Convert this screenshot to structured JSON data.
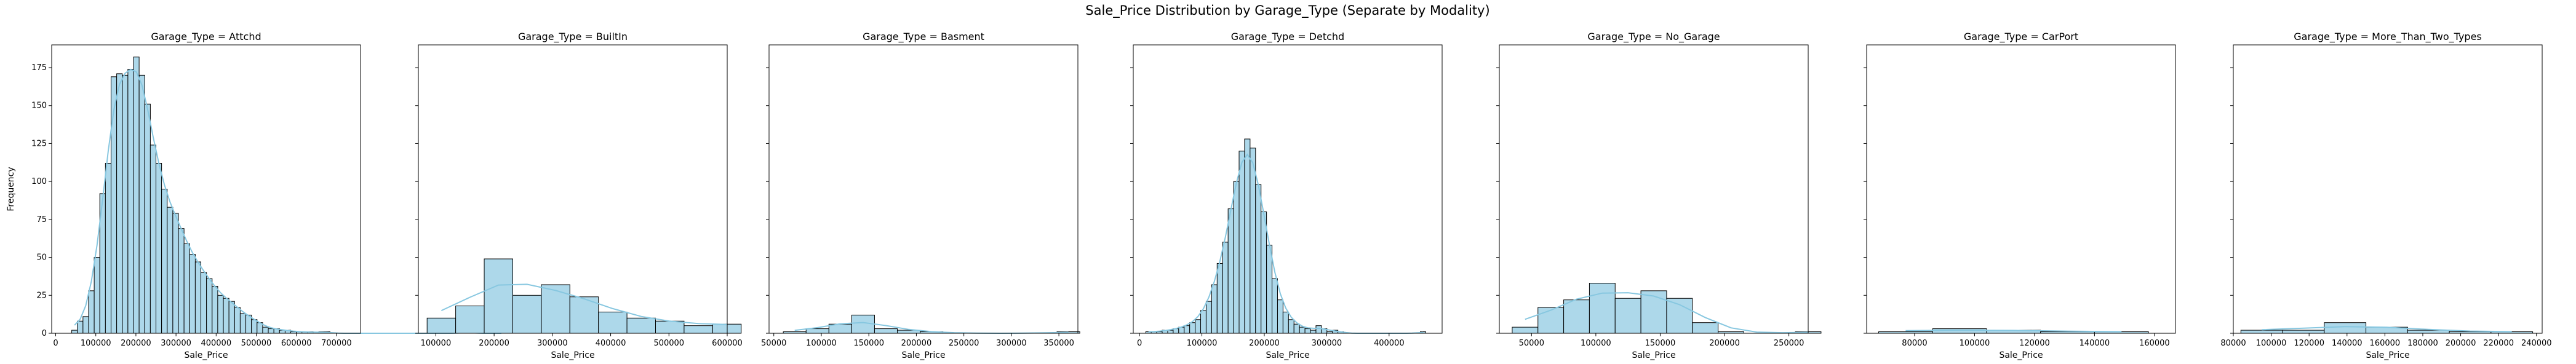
{
  "figure": {
    "suptitle": "Sale_Price Distribution by Garage_Type (Separate by Modality)"
  },
  "colors": {
    "bar_fill": "#add8ea",
    "bar_edge": "#000000",
    "kde_line": "#87c7e0",
    "axis": "#000000"
  },
  "chart_data": [
    {
      "type": "bar",
      "title": "Garage_Type = Attchd",
      "xlabel": "Sale_Price",
      "ylabel": "Frequency",
      "ylim": [
        0,
        190
      ],
      "yticks": [
        0,
        25,
        50,
        75,
        100,
        125,
        150,
        175
      ],
      "xlim": [
        -10000,
        760000
      ],
      "xticks": [
        0,
        100000,
        200000,
        300000,
        400000,
        500000,
        600000,
        700000
      ],
      "bin_start": 40000,
      "bin_width": 14000,
      "counts": [
        2,
        8,
        11,
        28,
        50,
        92,
        112,
        169,
        171,
        170,
        174,
        182,
        170,
        151,
        124,
        112,
        95,
        83,
        79,
        69,
        59,
        52,
        47,
        40,
        36,
        31,
        25,
        23,
        21,
        17,
        13,
        12,
        9,
        7,
        4,
        3,
        3,
        2,
        2,
        1,
        1,
        1,
        1,
        0,
        1,
        1,
        0,
        0,
        0,
        0,
        0,
        0,
        0,
        0,
        0,
        0,
        0,
        0,
        0,
        0,
        0,
        0,
        0,
        0,
        0,
        0,
        0,
        0,
        0,
        0,
        1,
        0,
        0,
        0,
        0,
        0,
        0
      ]
    },
    {
      "type": "bar",
      "title": "Garage_Type = BuiltIn",
      "xlabel": "Sale_Price",
      "ylim": [
        0,
        190
      ],
      "xlim": [
        70000,
        600000
      ],
      "xticks": [
        100000,
        200000,
        300000,
        400000,
        500000,
        600000
      ],
      "bin_start": 85000,
      "bin_width": 49000,
      "counts": [
        10,
        18,
        49,
        25,
        32,
        24,
        14,
        10,
        8,
        5,
        6
      ]
    },
    {
      "type": "bar",
      "title": "Garage_Type = Basment",
      "xlabel": "Sale_Price",
      "ylim": [
        0,
        190
      ],
      "xlim": [
        45000,
        370000
      ],
      "xticks": [
        50000,
        100000,
        150000,
        200000,
        250000,
        300000,
        350000
      ],
      "bin_start": 60000,
      "bin_width": 24000,
      "counts": [
        1,
        3,
        6,
        12,
        3,
        2,
        1,
        0,
        0,
        0,
        0,
        0,
        1
      ]
    },
    {
      "type": "bar",
      "title": "Garage_Type = Detchd",
      "xlabel": "Sale_Price",
      "ylim": [
        0,
        190
      ],
      "xlim": [
        -10000,
        485000
      ],
      "xticks": [
        0,
        100000,
        200000,
        300000,
        400000
      ],
      "bin_start": 10000,
      "bin_width": 8800,
      "counts": [
        1,
        1,
        1,
        2,
        2,
        3,
        4,
        5,
        7,
        9,
        15,
        21,
        32,
        46,
        60,
        82,
        100,
        120,
        128,
        122,
        98,
        80,
        58,
        36,
        22,
        14,
        9,
        6,
        4,
        3,
        2,
        5,
        3,
        1,
        2,
        1,
        0,
        0,
        0,
        0,
        0,
        0,
        0,
        0,
        0,
        0,
        0,
        0,
        0,
        0,
        1
      ]
    },
    {
      "type": "bar",
      "title": "Garage_Type = No_Garage",
      "xlabel": "Sale_Price",
      "ylim": [
        0,
        190
      ],
      "xlim": [
        25000,
        265000
      ],
      "xticks": [
        50000,
        100000,
        150000,
        200000,
        250000
      ],
      "bin_start": 35000,
      "bin_width": 20000,
      "counts": [
        4,
        17,
        22,
        33,
        23,
        28,
        23,
        7,
        1,
        0,
        0,
        1
      ]
    },
    {
      "type": "bar",
      "title": "Garage_Type = CarPort",
      "xlabel": "Sale_Price",
      "ylim": [
        0,
        190
      ],
      "xlim": [
        64000,
        167000
      ],
      "xticks": [
        80000,
        100000,
        120000,
        140000,
        160000
      ],
      "bin_start": 68000,
      "bin_width": 18000,
      "counts": [
        1,
        3,
        2,
        1,
        1
      ]
    },
    {
      "type": "bar",
      "title": "Garage_Type = More_Than_Two_Types",
      "xlabel": "Sale_Price",
      "ylim": [
        0,
        190
      ],
      "xlim": [
        80000,
        243000
      ],
      "xticks": [
        80000,
        100000,
        120000,
        140000,
        160000,
        180000,
        200000,
        220000,
        240000
      ],
      "bin_start": 84000,
      "bin_width": 22000,
      "counts": [
        2,
        2,
        7,
        4,
        2,
        1,
        1
      ]
    }
  ]
}
